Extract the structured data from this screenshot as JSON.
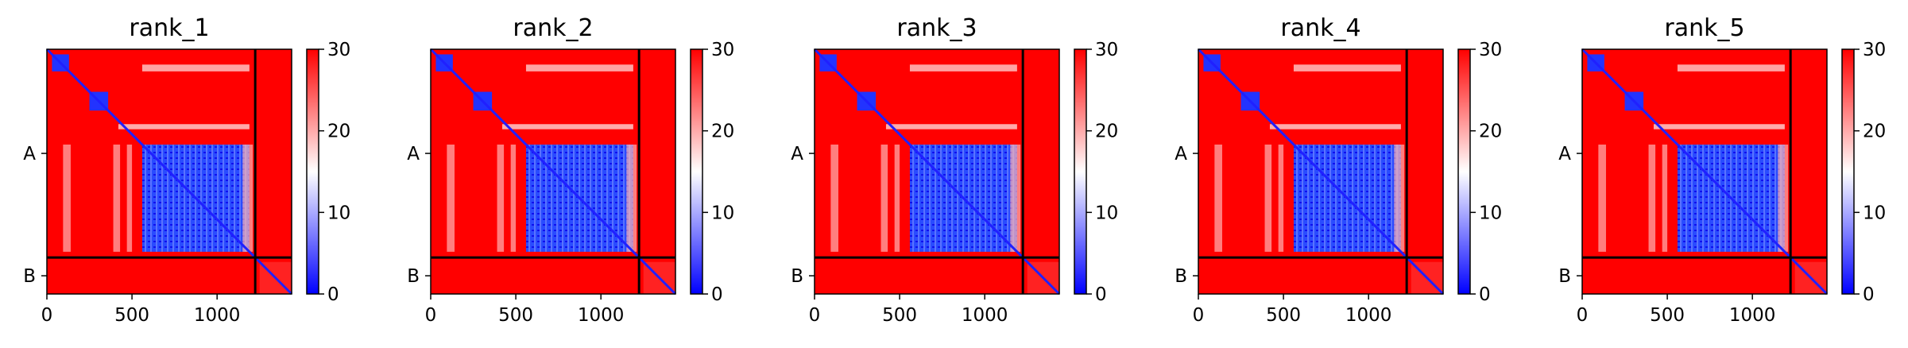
{
  "chart_data": {
    "type": "heatmap",
    "colormap": {
      "low": "#0000ff",
      "mid": "#ffffff",
      "high": "#ff0000"
    },
    "colorbar": {
      "vmin": 0,
      "vmax": 30,
      "ticks": [
        "0",
        "10",
        "20",
        "30"
      ]
    },
    "x_axis": {
      "range": [
        0,
        1438
      ],
      "ticks": [
        0,
        500,
        1000
      ],
      "tick_labels": [
        "0",
        "500",
        "1000"
      ]
    },
    "chain_boundary": 1224,
    "chains": [
      {
        "label": "A",
        "center": 612
      },
      {
        "label": "B",
        "center": 1331
      }
    ],
    "panels": [
      {
        "title": "rank_1"
      },
      {
        "title": "rank_2"
      },
      {
        "title": "rank_3"
      },
      {
        "title": "rank_4"
      },
      {
        "title": "rank_5"
      }
    ]
  }
}
